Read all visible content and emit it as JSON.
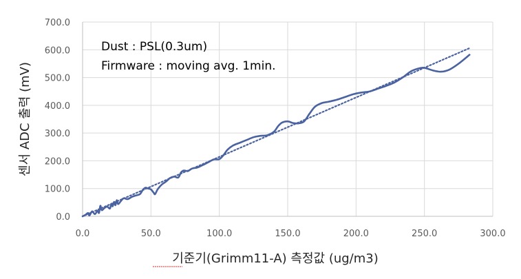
{
  "chart_data": {
    "type": "line",
    "xlabel": "기준기(Grimm11-A) 측정값 (ug/m3)",
    "ylabel": "센서  ADC 출력 (mV)",
    "xlim": [
      0,
      300
    ],
    "ylim": [
      0,
      700
    ],
    "x_ticks": [
      "0.0",
      "50.0",
      "100.0",
      "150.0",
      "200.0",
      "250.0",
      "300.0"
    ],
    "y_ticks": [
      "0.0",
      "100.0",
      "200.0",
      "300.0",
      "400.0",
      "500.0",
      "600.0",
      "700.0"
    ],
    "grid": "vertical-and-horizontal",
    "annotations": [
      "Dust : PSL(0.3um)",
      "Firmware : moving avg. 1min."
    ],
    "colors": {
      "series": "#4a62a0",
      "grid": "#d9d9d9"
    },
    "series": [
      {
        "style": "solid",
        "points": [
          [
            0,
            0
          ],
          [
            2,
            5
          ],
          [
            4,
            12
          ],
          [
            5,
            3
          ],
          [
            7,
            18
          ],
          [
            9,
            8
          ],
          [
            11,
            20
          ],
          [
            12,
            12
          ],
          [
            13,
            38
          ],
          [
            14,
            22
          ],
          [
            16,
            30
          ],
          [
            18,
            35
          ],
          [
            20,
            28
          ],
          [
            21,
            45
          ],
          [
            22,
            36
          ],
          [
            23,
            52
          ],
          [
            24,
            40
          ],
          [
            25,
            58
          ],
          [
            26,
            44
          ],
          [
            28,
            55
          ],
          [
            30,
            65
          ],
          [
            33,
            62
          ],
          [
            36,
            70
          ],
          [
            39,
            75
          ],
          [
            42,
            80
          ],
          [
            44,
            95
          ],
          [
            46,
            103
          ],
          [
            48,
            100
          ],
          [
            50,
            97
          ],
          [
            52,
            85
          ],
          [
            53,
            80
          ],
          [
            55,
            98
          ],
          [
            58,
            115
          ],
          [
            61,
            125
          ],
          [
            64,
            138
          ],
          [
            67,
            143
          ],
          [
            70,
            140
          ],
          [
            72,
            158
          ],
          [
            74,
            165
          ],
          [
            77,
            163
          ],
          [
            80,
            172
          ],
          [
            84,
            176
          ],
          [
            88,
            185
          ],
          [
            92,
            195
          ],
          [
            96,
            205
          ],
          [
            100,
            206
          ],
          [
            103,
            220
          ],
          [
            106,
            240
          ],
          [
            110,
            255
          ],
          [
            115,
            265
          ],
          [
            120,
            275
          ],
          [
            125,
            285
          ],
          [
            130,
            290
          ],
          [
            135,
            292
          ],
          [
            140,
            305
          ],
          [
            143,
            325
          ],
          [
            146,
            338
          ],
          [
            150,
            342
          ],
          [
            154,
            336
          ],
          [
            158,
            335
          ],
          [
            162,
            342
          ],
          [
            166,
            370
          ],
          [
            170,
            395
          ],
          [
            175,
            408
          ],
          [
            180,
            413
          ],
          [
            186,
            420
          ],
          [
            192,
            430
          ],
          [
            198,
            440
          ],
          [
            204,
            446
          ],
          [
            210,
            450
          ],
          [
            216,
            460
          ],
          [
            222,
            470
          ],
          [
            228,
            482
          ],
          [
            234,
            500
          ],
          [
            240,
            522
          ],
          [
            246,
            533
          ],
          [
            250,
            535
          ],
          [
            256,
            526
          ],
          [
            262,
            521
          ],
          [
            268,
            528
          ],
          [
            275,
            550
          ],
          [
            283,
            582
          ]
        ]
      },
      {
        "style": "dotted-trendline",
        "points": [
          [
            0,
            0
          ],
          [
            283,
            606
          ]
        ]
      }
    ]
  }
}
